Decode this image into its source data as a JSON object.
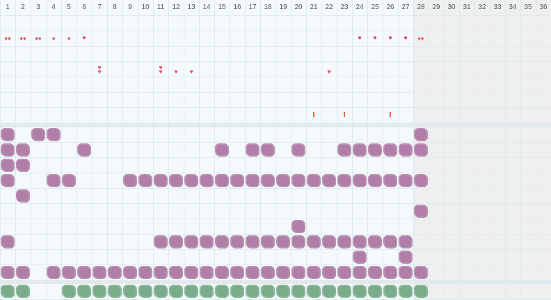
{
  "days": [
    "1",
    "2",
    "3",
    "4",
    "5",
    "6",
    "7",
    "8",
    "9",
    "10",
    "11",
    "12",
    "13",
    "14",
    "15",
    "16",
    "17",
    "18",
    "19",
    "20",
    "21",
    "22",
    "23",
    "24",
    "25",
    "26",
    "27",
    "28",
    "29",
    "30",
    "31",
    "32",
    "33",
    "34",
    "35",
    "36"
  ],
  "colors": {
    "accent_red": "#e05566",
    "tick_orange": "#e86a4a",
    "blob_purple": "#b07ea6",
    "blob_green": "#7aac8a",
    "grid": "#dcebef",
    "inactive_bg": "#efefef"
  },
  "icons": {
    "drop": "drop-icon",
    "dot": "dot-icon",
    "heart": "heart-icon",
    "tick": "tick-icon",
    "blob": "blob-icon"
  },
  "marks": {
    "row1": [
      {
        "day": 1,
        "type": "drops",
        "count": 2
      },
      {
        "day": 2,
        "type": "drops",
        "count": 2
      },
      {
        "day": 3,
        "type": "drops",
        "count": 2
      },
      {
        "day": 4,
        "type": "drops",
        "count": 1
      },
      {
        "day": 5,
        "type": "drops",
        "count": 1
      },
      {
        "day": 6,
        "type": "dot"
      },
      {
        "day": 24,
        "type": "dot"
      },
      {
        "day": 25,
        "type": "dot"
      },
      {
        "day": 26,
        "type": "dot"
      },
      {
        "day": 27,
        "type": "dot"
      },
      {
        "day": 28,
        "type": "drops",
        "count": 2
      }
    ],
    "row2": [
      {
        "day": 7,
        "type": "hearts",
        "count": 2
      },
      {
        "day": 11,
        "type": "hearts",
        "count": 2
      },
      {
        "day": 12,
        "type": "hearts",
        "count": 1
      },
      {
        "day": 13,
        "type": "hearts",
        "count": 1
      },
      {
        "day": 22,
        "type": "hearts",
        "count": 1
      }
    ],
    "row3_ticks": [
      21,
      23,
      26
    ]
  },
  "purple_rows": [
    [
      1,
      3,
      4,
      28
    ],
    [
      1,
      2,
      6,
      15,
      17,
      18,
      20,
      23,
      24,
      25,
      26,
      27,
      28
    ],
    [
      1,
      2
    ],
    [
      1,
      4,
      5,
      9,
      10,
      11,
      12,
      13,
      14,
      15,
      16,
      17,
      18,
      19,
      20,
      21,
      22,
      23,
      24,
      25,
      26,
      27,
      28
    ],
    [
      2
    ],
    [
      28
    ],
    [
      20
    ],
    [
      1,
      11,
      12,
      13,
      14,
      15,
      16,
      17,
      18,
      19,
      20,
      21,
      22,
      23,
      24,
      25,
      26,
      27
    ],
    [
      24,
      27
    ],
    [
      1,
      2,
      4,
      5,
      6,
      7,
      8,
      9,
      10,
      11,
      12,
      13,
      14,
      15,
      16,
      17,
      18,
      19,
      20,
      21,
      22,
      23,
      24,
      25,
      26,
      27,
      28
    ]
  ],
  "green_row": [
    1,
    2,
    5,
    6,
    7,
    8,
    9,
    10,
    11,
    12,
    13,
    14,
    15,
    16,
    17,
    18,
    19,
    20,
    21,
    22,
    23,
    24,
    25,
    26,
    27,
    28
  ]
}
